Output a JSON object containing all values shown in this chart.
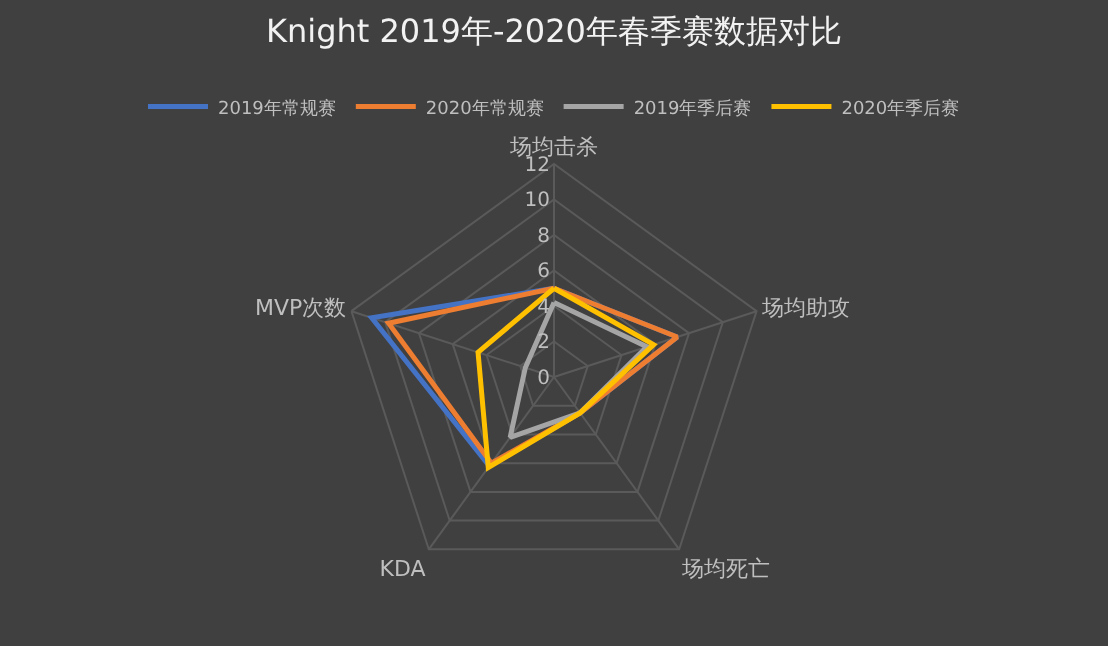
{
  "chart_data": {
    "type": "radar",
    "title": "Knight 2019年-2020年春季赛数据对比",
    "categories": [
      "场均击杀",
      "场均助攻",
      "场均死亡",
      "KDA",
      "MVP次数"
    ],
    "series": [
      {
        "name": "2019年常规赛",
        "color": "#4472c4",
        "values": [
          5,
          7.3,
          2.5,
          6.2,
          10.8
        ]
      },
      {
        "name": "2020年常规赛",
        "color": "#ed7d31",
        "values": [
          5,
          7.3,
          2.5,
          6,
          9.8
        ]
      },
      {
        "name": "2019年季后赛",
        "color": "#a5a5a5",
        "values": [
          4.2,
          5.5,
          2.5,
          4.2,
          1.7
        ]
      },
      {
        "name": "2020年季后赛",
        "color": "#ffc000",
        "values": [
          5,
          5.9,
          2.5,
          6.3,
          4.5
        ]
      }
    ],
    "ylim": [
      0,
      12
    ],
    "yticks": [
      0,
      2,
      4,
      6,
      8,
      10,
      12
    ],
    "legend": "top",
    "grid": true
  }
}
